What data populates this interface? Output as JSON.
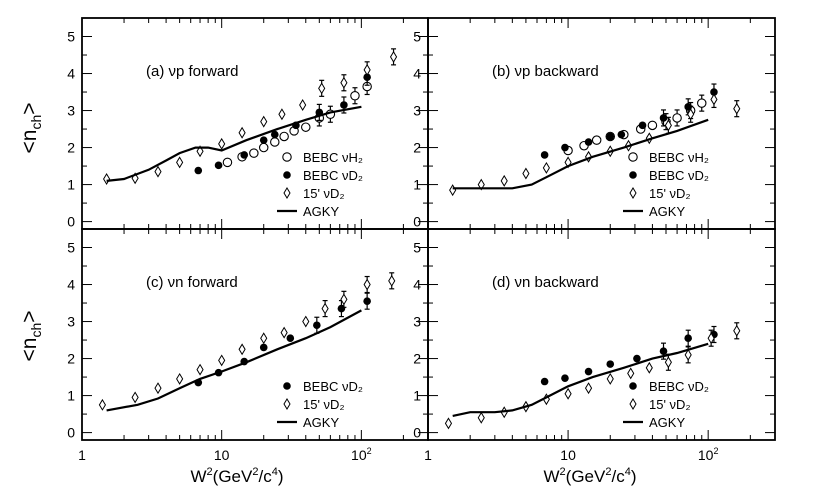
{
  "figure": {
    "ylabel_main": "<n",
    "ylabel_sub": "ch",
    "ylabel_close": ">",
    "xlabel_main": "W",
    "xlabel_sup": "2",
    "xlabel_rest": "(GeV",
    "xlabel_sup2": "2",
    "xlabel_rest2": "/c",
    "xlabel_sup3": "4",
    "xlabel_close": ")",
    "xticks": [
      {
        "value": 1,
        "label": "1"
      },
      {
        "value": 10,
        "label": "10"
      },
      {
        "value": 100,
        "label": "10",
        "exp": "2"
      }
    ],
    "yticks": [
      0,
      1,
      2,
      3,
      4,
      5
    ]
  },
  "chart_data": [
    {
      "type": "scatter",
      "panel": "a",
      "title": "(a) νp forward",
      "xscale": "log",
      "xlim": [
        1,
        300
      ],
      "ylim": [
        -0.2,
        5.5
      ],
      "legend_placement": "bottom-right",
      "series": [
        {
          "name": "BEBC νH₂",
          "marker": "open-circle",
          "points": [
            [
              11,
              1.6
            ],
            [
              14,
              1.75
            ],
            [
              17,
              1.85
            ],
            [
              20,
              2.0
            ],
            [
              24,
              2.15
            ],
            [
              28,
              2.3
            ],
            [
              33,
              2.45
            ],
            [
              40,
              2.55
            ],
            [
              50,
              2.8
            ],
            [
              60,
              2.9
            ],
            [
              90,
              3.4
            ],
            [
              110,
              3.65
            ]
          ]
        },
        {
          "name": "BEBC νD₂",
          "marker": "filled-circle",
          "points": [
            [
              6.8,
              1.38
            ],
            [
              9.5,
              1.52
            ],
            [
              14.5,
              1.8
            ],
            [
              20,
              2.2
            ],
            [
              24,
              2.35
            ],
            [
              34,
              2.6
            ],
            [
              50,
              2.95
            ],
            [
              75,
              3.15
            ],
            [
              110,
              3.9
            ]
          ]
        },
        {
          "name": "15' νD₂",
          "marker": "open-diamond",
          "points": [
            [
              1.5,
              1.15
            ],
            [
              2.4,
              1.17
            ],
            [
              3.5,
              1.35
            ],
            [
              5.0,
              1.6
            ],
            [
              7.0,
              1.9
            ],
            [
              10,
              2.1
            ],
            [
              14,
              2.4
            ],
            [
              20,
              2.7
            ],
            [
              27,
              2.9
            ],
            [
              38,
              3.15
            ],
            [
              52,
              3.6
            ],
            [
              75,
              3.75
            ],
            [
              110,
              4.1
            ],
            [
              170,
              4.45
            ]
          ]
        },
        {
          "name": "AGKY",
          "marker": "line",
          "points": [
            [
              1.5,
              1.1
            ],
            [
              2.0,
              1.15
            ],
            [
              3.0,
              1.4
            ],
            [
              4.0,
              1.65
            ],
            [
              5.0,
              1.85
            ],
            [
              6.5,
              2.0
            ],
            [
              8.0,
              2.0
            ],
            [
              10,
              1.92
            ],
            [
              15,
              2.2
            ],
            [
              25,
              2.5
            ],
            [
              40,
              2.75
            ],
            [
              60,
              2.95
            ],
            [
              100,
              3.1
            ]
          ]
        }
      ]
    },
    {
      "type": "scatter",
      "panel": "b",
      "title": "(b) νp backward",
      "xscale": "log",
      "xlim": [
        1,
        300
      ],
      "ylim": [
        -0.2,
        5.5
      ],
      "legend_placement": "bottom-right",
      "series": [
        {
          "name": "BEBC νH₂",
          "marker": "open-circle",
          "points": [
            [
              10,
              1.92
            ],
            [
              13,
              2.05
            ],
            [
              16,
              2.2
            ],
            [
              20,
              2.3
            ],
            [
              25,
              2.35
            ],
            [
              33,
              2.5
            ],
            [
              40,
              2.6
            ],
            [
              50,
              2.7
            ],
            [
              60,
              2.8
            ],
            [
              75,
              3.0
            ],
            [
              90,
              3.2
            ]
          ]
        },
        {
          "name": "BEBC νD₂",
          "marker": "filled-circle",
          "points": [
            [
              6.8,
              1.8
            ],
            [
              9.5,
              2.0
            ],
            [
              14,
              2.15
            ],
            [
              20,
              2.3
            ],
            [
              24,
              2.35
            ],
            [
              34,
              2.6
            ],
            [
              48,
              2.8
            ],
            [
              72,
              3.1
            ],
            [
              110,
              3.5
            ]
          ]
        },
        {
          "name": "15' νD₂",
          "marker": "open-diamond",
          "points": [
            [
              1.5,
              0.85
            ],
            [
              2.4,
              1.0
            ],
            [
              3.5,
              1.1
            ],
            [
              5.0,
              1.3
            ],
            [
              7.0,
              1.45
            ],
            [
              10,
              1.6
            ],
            [
              14,
              1.75
            ],
            [
              20,
              1.9
            ],
            [
              27,
              2.05
            ],
            [
              38,
              2.25
            ],
            [
              52,
              2.6
            ],
            [
              75,
              2.9
            ],
            [
              110,
              3.3
            ],
            [
              160,
              3.05
            ]
          ]
        },
        {
          "name": "AGKY",
          "marker": "line",
          "points": [
            [
              1.5,
              0.9
            ],
            [
              3.0,
              0.9
            ],
            [
              4.0,
              0.9
            ],
            [
              5.5,
              1.0
            ],
            [
              7.0,
              1.2
            ],
            [
              10,
              1.5
            ],
            [
              15,
              1.75
            ],
            [
              25,
              2.0
            ],
            [
              40,
              2.25
            ],
            [
              60,
              2.45
            ],
            [
              100,
              2.75
            ]
          ]
        }
      ]
    },
    {
      "type": "scatter",
      "panel": "c",
      "title": "(c) νn forward",
      "xscale": "log",
      "xlim": [
        1,
        300
      ],
      "ylim": [
        -0.2,
        5.5
      ],
      "legend_placement": "bottom-right",
      "series": [
        {
          "name": "BEBC νD₂",
          "marker": "filled-circle",
          "points": [
            [
              6.8,
              1.35
            ],
            [
              9.5,
              1.62
            ],
            [
              14.5,
              1.92
            ],
            [
              20,
              2.3
            ],
            [
              31,
              2.55
            ],
            [
              48,
              2.9
            ],
            [
              72,
              3.35
            ],
            [
              110,
              3.55
            ]
          ]
        },
        {
          "name": "15' νD₂",
          "marker": "open-diamond",
          "points": [
            [
              1.4,
              0.75
            ],
            [
              2.4,
              0.95
            ],
            [
              3.5,
              1.2
            ],
            [
              5.0,
              1.45
            ],
            [
              7.0,
              1.7
            ],
            [
              10,
              1.95
            ],
            [
              14,
              2.25
            ],
            [
              20,
              2.55
            ],
            [
              28,
              2.7
            ],
            [
              40,
              3.0
            ],
            [
              55,
              3.35
            ],
            [
              75,
              3.6
            ],
            [
              110,
              4.0
            ],
            [
              165,
              4.1
            ]
          ]
        },
        {
          "name": "AGKY",
          "marker": "line",
          "points": [
            [
              1.5,
              0.6
            ],
            [
              2.5,
              0.75
            ],
            [
              3.5,
              0.92
            ],
            [
              5.0,
              1.2
            ],
            [
              7.0,
              1.45
            ],
            [
              10,
              1.65
            ],
            [
              15,
              1.9
            ],
            [
              25,
              2.25
            ],
            [
              40,
              2.55
            ],
            [
              60,
              2.85
            ],
            [
              100,
              3.3
            ]
          ]
        }
      ]
    },
    {
      "type": "scatter",
      "panel": "d",
      "title": "(d) νn backward",
      "xscale": "log",
      "xlim": [
        1,
        300
      ],
      "ylim": [
        -0.2,
        5.5
      ],
      "legend_placement": "bottom-right",
      "series": [
        {
          "name": "BEBC νD₂",
          "marker": "filled-circle",
          "points": [
            [
              6.8,
              1.38
            ],
            [
              9.5,
              1.47
            ],
            [
              14,
              1.65
            ],
            [
              20,
              1.85
            ],
            [
              31,
              2.0
            ],
            [
              48,
              2.2
            ],
            [
              72,
              2.55
            ],
            [
              110,
              2.65
            ]
          ]
        },
        {
          "name": "15' νD₂",
          "marker": "open-diamond",
          "points": [
            [
              1.4,
              0.25
            ],
            [
              2.4,
              0.4
            ],
            [
              3.5,
              0.55
            ],
            [
              5.0,
              0.7
            ],
            [
              7.0,
              0.9
            ],
            [
              10,
              1.05
            ],
            [
              14,
              1.2
            ],
            [
              20,
              1.45
            ],
            [
              28,
              1.6
            ],
            [
              38,
              1.75
            ],
            [
              52,
              1.9
            ],
            [
              72,
              2.1
            ],
            [
              105,
              2.55
            ],
            [
              160,
              2.75
            ]
          ]
        },
        {
          "name": "AGKY",
          "marker": "line",
          "points": [
            [
              1.5,
              0.45
            ],
            [
              2.0,
              0.55
            ],
            [
              3.0,
              0.55
            ],
            [
              4.0,
              0.6
            ],
            [
              5.5,
              0.75
            ],
            [
              7.0,
              0.95
            ],
            [
              10,
              1.25
            ],
            [
              15,
              1.5
            ],
            [
              25,
              1.75
            ],
            [
              40,
              2.0
            ],
            [
              60,
              2.15
            ],
            [
              100,
              2.4
            ]
          ]
        }
      ]
    }
  ]
}
